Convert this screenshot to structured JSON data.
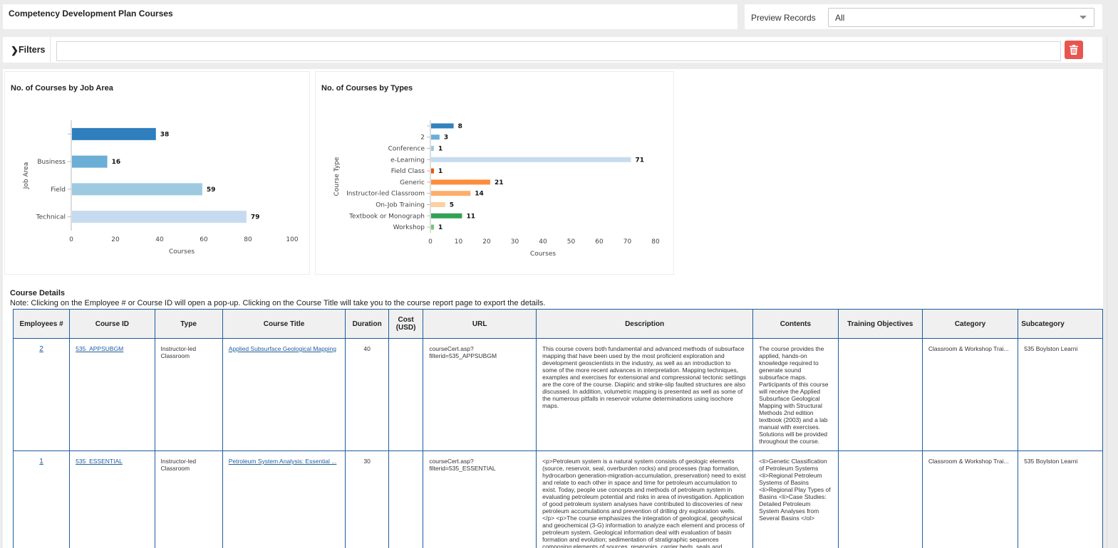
{
  "header": {
    "title": "Competency Development Plan Courses",
    "preview_label": "Preview Records",
    "preview_value": "All"
  },
  "filters": {
    "label": "Filters",
    "input_value": ""
  },
  "charts": {
    "job_area_title": "No. of Courses by Job Area",
    "types_title": "No. of Courses by Types"
  },
  "chart_data": [
    {
      "type": "bar",
      "orientation": "horizontal",
      "title": "No. of Courses by Job Area",
      "xlabel": "Courses",
      "ylabel": "Job Area",
      "categories": [
        "",
        "Business",
        "Field",
        "Technical"
      ],
      "values": [
        38,
        16,
        59,
        79
      ],
      "colors": [
        "#2f7ebd",
        "#6baed6",
        "#9ecae1",
        "#c6dbef"
      ],
      "xlim": [
        0,
        100
      ],
      "xticks": [
        0,
        20,
        40,
        60,
        80,
        100
      ],
      "grid": false,
      "legend": "none"
    },
    {
      "type": "bar",
      "orientation": "horizontal",
      "title": "No. of Courses by Types",
      "xlabel": "Courses",
      "ylabel": "Course Type",
      "categories": [
        "",
        "2",
        "Conference",
        "e-Learning",
        "Field Class",
        "Generic",
        "Instructor-led Classroom",
        "On-Job Training",
        "Textbook or Monograph",
        "Workshop"
      ],
      "values": [
        8,
        3,
        1,
        71,
        1,
        21,
        14,
        5,
        11,
        1
      ],
      "colors": [
        "#3182bd",
        "#6baed6",
        "#9ecae1",
        "#c6dbef",
        "#e6550d",
        "#fd8d3c",
        "#fdae6b",
        "#fdd0a2",
        "#31a354",
        "#74c476"
      ],
      "xlim": [
        0,
        80
      ],
      "xticks": [
        0,
        10,
        20,
        30,
        40,
        50,
        60,
        70,
        80
      ],
      "grid": false,
      "legend": "none"
    }
  ],
  "details": {
    "title": "Course Details",
    "note": "Note: Clicking on the Employee # or Course ID will open a pop-up. Clicking on the Course Title will take you to the course report page to export the details."
  },
  "table": {
    "headers": [
      "Employees #",
      "Course ID",
      "Type",
      "Course Title",
      "Duration",
      "Cost (USD)",
      "URL",
      "Description",
      "Contents",
      "Training Objectives",
      "Category",
      "Subcategory"
    ],
    "rows": [
      {
        "employees": "2",
        "course_id": "535_APPSUBGM",
        "type": "Instructor-led Classroom",
        "title": "Applied Subsurface Geological Mapping",
        "duration": "40",
        "cost": "",
        "url": "courseCert.asp?filterid=535_APPSUBGM",
        "description": "This course covers both fundamental and advanced methods of subsurface mapping that have been used by the most proficient exploration and development geoscientists in the industry, as well as an introduction to some of the more recent advances in interpretation. Mapping techniques, examples and exercises for extensional and compressional tectonic settings are the core of the course. Diapiric and strike-slip faulted structures are also discussed. In addition, volumetric mapping is presented as well as some of the numerous pitfalls in reservoir volume determinations using isochore maps.",
        "contents": "The course provides the applied, hands-on knowledge required to generate sound subsurface maps. Participants of this course will receive the Applied Subsurface Geological Mapping with Structural Methods 2nd edition textbook (2003) and a lab manual with exercises. Solutions will be provided throughout the course.",
        "objectives": "",
        "category": "Classroom & Workshop Trai...",
        "subcategory": "535 Boylston Learni"
      },
      {
        "employees": "1",
        "course_id": "535_ESSENTIAL",
        "type": "Instructor-led Classroom",
        "title": "Petroleum System Analysis: Essential ...",
        "duration": "30",
        "cost": "",
        "url": "courseCert.asp?filterid=535_ESSENTIAL",
        "description": "<p>Petroleum system is a natural system consists of geologic elements (source, reservoir, seal, overburden rocks) and processes (trap formation, hydrocarbon generation-migration-accumulation, preservation) need to exist and relate to each other in space and time for petroleum accumulation to exist. Today, people use concepts and methods of petroleum system in evaluating petroleum potential and risks in area of investigation. Application of good petroleum system analyses have contributed to discoveries of new petroleum accumulations and prevention of drilling dry exploration wells.</p> <p>The course emphasizes the integration of geological, geophysical and geochemical (3-G) information to analyze each element and process of petroleum system. Geological information deal with evaluation of basin formation and evolution; sedimentation of stratigraphic sequences composing elements of sources, reservoirs, carrier beds, seals and",
        "contents": "<li>Genetic Classification of Petroleum Systems <li>Regional Petroleum Systems of Basins <li>Regional Play Types of Basins <li>Case Studies: Detailed Petroleum System Analyses from Several Basins </ol>",
        "objectives": "",
        "category": "Classroom & Workshop Trai...",
        "subcategory": "535 Boylston Learni"
      }
    ]
  },
  "icons": {
    "filters_toggle": "chevron-right-icon",
    "clear_filters": "trash-icon",
    "select_caret": "caret-down-icon"
  },
  "colors": {
    "table_border": "#1f5c9e",
    "danger": "#e85550",
    "link": "#1f5c9e"
  }
}
